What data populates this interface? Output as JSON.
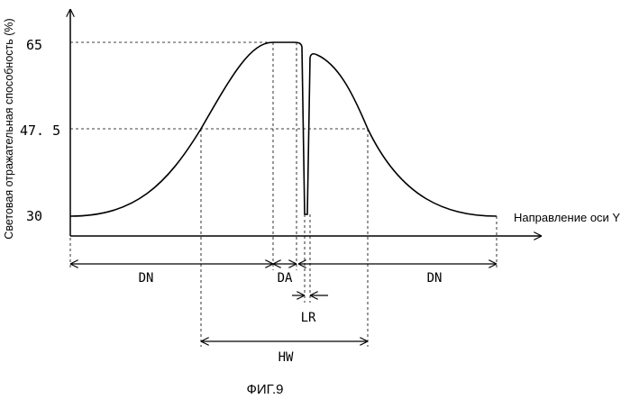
{
  "chart_data": {
    "type": "line",
    "ylabel": "Световая отражательная способность (%)",
    "xlabel": "Направление оси Y",
    "y_ticks": [
      "65",
      "47. 5",
      "30"
    ],
    "y_values": [
      65,
      47.5,
      30
    ],
    "ylim": [
      30,
      65
    ],
    "grid": false,
    "dimensions": [
      {
        "label": "DN"
      },
      {
        "label": "DA"
      },
      {
        "label": "DN"
      },
      {
        "label": "LR"
      },
      {
        "label": "HW"
      }
    ]
  },
  "caption": "ФИГ.9"
}
